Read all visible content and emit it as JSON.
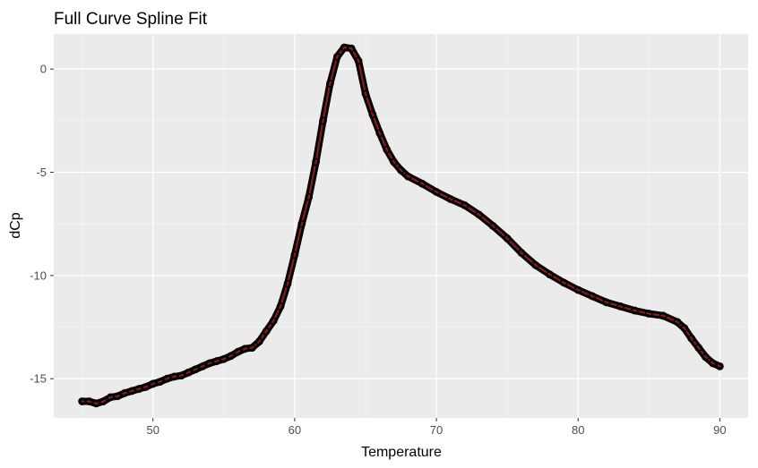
{
  "chart_data": {
    "type": "line",
    "title": "Full Curve Spline Fit",
    "xlabel": "Temperature",
    "ylabel": "dCp",
    "xlim": [
      43.0,
      92.0
    ],
    "ylim": [
      -16.9,
      1.7
    ],
    "x_ticks": [
      50,
      60,
      70,
      80,
      90
    ],
    "y_ticks": [
      0,
      -5,
      -10,
      -15
    ],
    "x_minor_ticks": [
      45,
      55,
      65,
      75,
      85
    ],
    "y_minor_ticks": [
      -2.5,
      -7.5,
      -12.5
    ],
    "grid": true,
    "legend": "none",
    "colors": {
      "panel": "#ebebeb",
      "grid_major": "#ffffff",
      "grid_minor": "#f5f5f5",
      "point_outline": "#000000",
      "fit_line": "#8b1a1a",
      "tick_label": "#4d4d4d"
    },
    "series": [
      {
        "x": [
          45.0,
          45.5,
          46.0,
          46.5,
          47.0,
          47.5,
          48.0,
          48.5,
          49.0,
          49.5,
          50.0,
          50.5,
          51.0,
          51.5,
          52.0,
          52.5,
          53.0,
          53.5,
          54.0,
          54.5,
          55.0,
          55.5,
          56.0,
          56.5,
          57.0,
          57.5,
          58.0,
          58.5,
          59.0,
          59.5,
          60.0,
          60.5,
          61.0,
          61.5,
          62.0,
          62.5,
          63.0,
          63.5,
          64.0,
          64.5,
          65.0,
          65.5,
          66.0,
          66.5,
          67.0,
          67.5,
          68.0,
          69.0,
          70.0,
          71.0,
          72.0,
          73.0,
          74.0,
          75.0,
          76.0,
          77.0,
          78.0,
          79.0,
          80.0,
          81.0,
          82.0,
          83.0,
          84.0,
          85.0,
          86.0,
          87.0,
          87.5,
          88.0,
          88.5,
          89.0,
          89.5,
          90.0
        ],
        "y": [
          -16.1,
          -16.1,
          -16.2,
          -16.1,
          -15.9,
          -15.85,
          -15.7,
          -15.6,
          -15.5,
          -15.4,
          -15.25,
          -15.15,
          -15.0,
          -14.9,
          -14.85,
          -14.7,
          -14.55,
          -14.4,
          -14.25,
          -14.15,
          -14.05,
          -13.9,
          -13.7,
          -13.55,
          -13.5,
          -13.2,
          -12.7,
          -12.2,
          -11.5,
          -10.4,
          -9.0,
          -7.5,
          -6.2,
          -4.5,
          -2.5,
          -0.7,
          0.6,
          1.05,
          1.0,
          0.4,
          -1.2,
          -2.2,
          -3.1,
          -3.9,
          -4.5,
          -4.9,
          -5.2,
          -5.55,
          -5.95,
          -6.3,
          -6.6,
          -7.05,
          -7.6,
          -8.2,
          -8.9,
          -9.5,
          -9.95,
          -10.35,
          -10.7,
          -11.0,
          -11.3,
          -11.5,
          -11.7,
          -11.85,
          -11.95,
          -12.25,
          -12.55,
          -13.05,
          -13.5,
          -13.95,
          -14.25,
          -14.4
        ]
      }
    ]
  }
}
